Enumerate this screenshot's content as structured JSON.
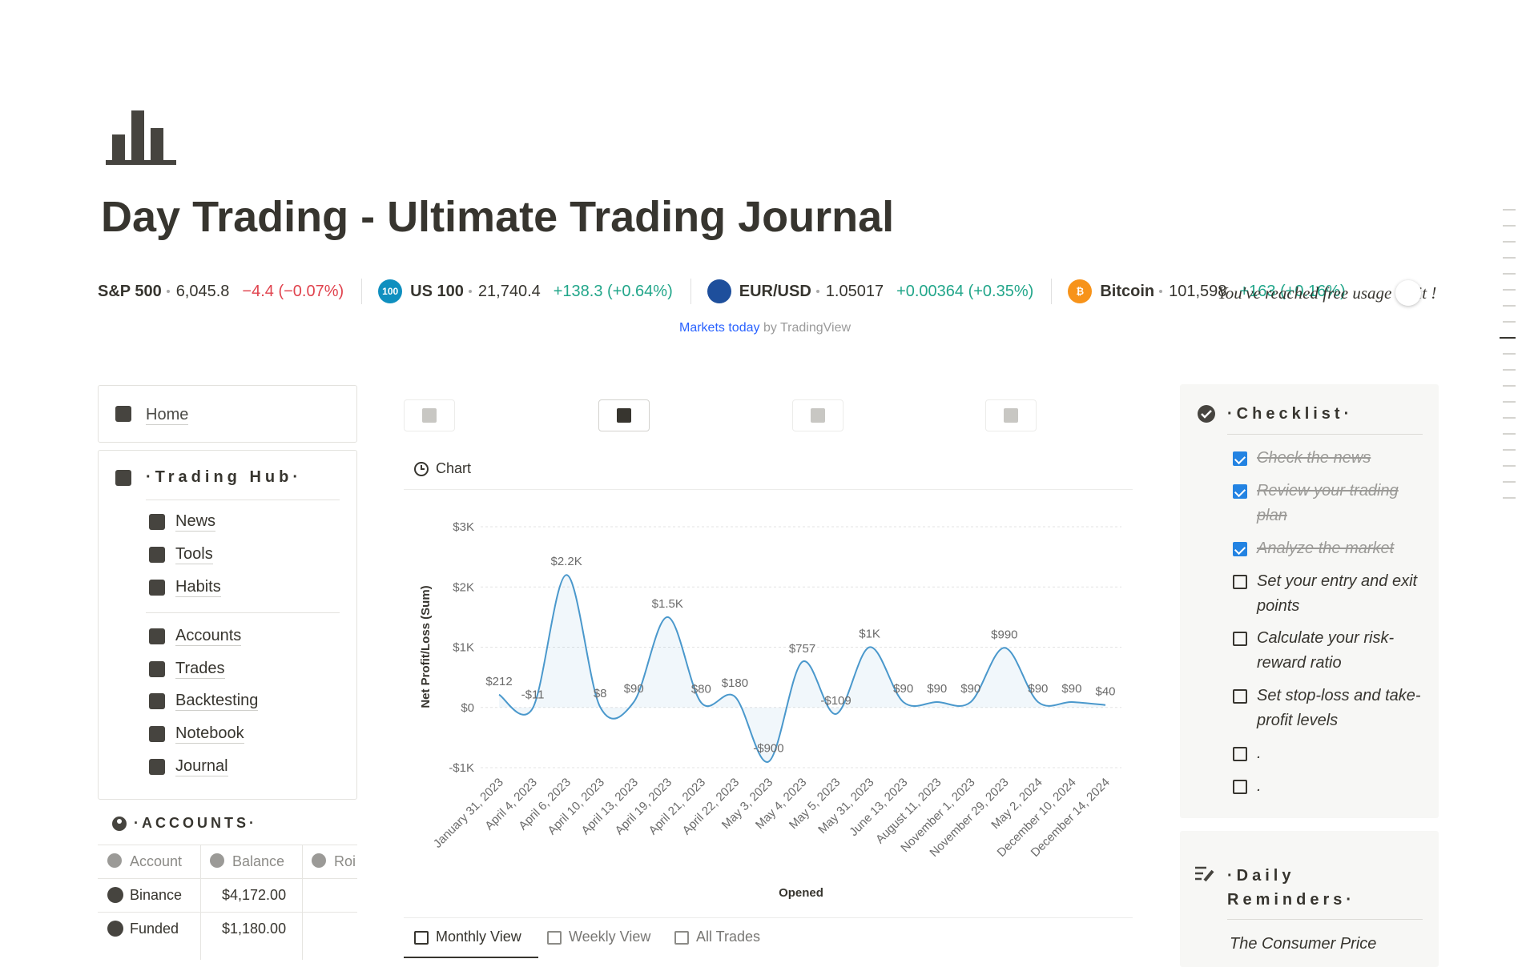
{
  "header": {
    "title": "Day Trading - Ultimate Trading Journal"
  },
  "ticker": {
    "items": [
      {
        "name": "S&P 500",
        "price": "6,045.8",
        "change": "−4.4 (−0.07%)",
        "trend": "down"
      },
      {
        "icon_label": "100",
        "name": "US 100",
        "price": "21,740.4",
        "change": "+138.3 (+0.64%)",
        "trend": "up"
      },
      {
        "name": "EUR/USD",
        "price": "1.05017",
        "change": "+0.00364 (+0.35%)",
        "trend": "up"
      },
      {
        "icon_label": "₿",
        "name": "Bitcoin",
        "price": "101,598",
        "change": "+163 (+0.16%)",
        "trend": "up"
      }
    ],
    "notice": "You've reached free usage limit !",
    "credit_link": "Markets today",
    "credit_rest": "by TradingView"
  },
  "sidebar": {
    "home": "Home",
    "hub_title": "·Trading Hub·",
    "group1": [
      "News",
      "Tools",
      "Habits"
    ],
    "group2": [
      "Accounts",
      "Trades",
      "Backtesting",
      "Notebook",
      "Journal"
    ]
  },
  "accounts": {
    "title": "·ACCOUNTS·",
    "columns": [
      "Account",
      "Balance",
      "Roi"
    ],
    "rows": [
      [
        "Binance",
        "$4,172.00"
      ],
      [
        "Funded",
        "$1,180.00"
      ]
    ]
  },
  "chart_panel": {
    "heading": "Chart",
    "tabs": [
      "Monthly View",
      "Weekly View",
      "All Trades"
    ]
  },
  "chart_data": {
    "type": "line",
    "y_label": "Net Profit/Loss (Sum)",
    "x_label": "Opened",
    "color": "#4a98cc",
    "grid": true,
    "categories": [
      "January 31, 2023",
      "April 4, 2023",
      "April 6, 2023",
      "April 10, 2023",
      "April 13, 2023",
      "April 19, 2023",
      "April 21, 2023",
      "April 22, 2023",
      "May 3, 2023",
      "May 4, 2023",
      "May 5, 2023",
      "May 31, 2023",
      "June 13, 2023",
      "August 11, 2023",
      "November 1, 2023",
      "November 29, 2023",
      "May 2, 2024",
      "December 10, 2024",
      "December 14, 2024"
    ],
    "values": [
      212,
      -11,
      2200,
      8,
      90,
      1500,
      80,
      180,
      -900,
      757,
      -109,
      1000,
      90,
      90,
      90,
      990,
      90,
      90,
      40
    ],
    "value_labels": [
      "$212",
      "-$11",
      "$2.2K",
      "$8",
      "$90",
      "$1.5K",
      "$80",
      "$180",
      "-$900",
      "$757",
      "-$109",
      "$1K",
      "$90",
      "$90",
      "$90",
      "$990",
      "$90",
      "$90",
      "$40"
    ],
    "ylim": [
      -1000,
      3000
    ],
    "yticks": [
      {
        "value": -1000,
        "label": "-$1K"
      },
      {
        "value": 0,
        "label": "$0"
      },
      {
        "value": 1000,
        "label": "$1K"
      },
      {
        "value": 2000,
        "label": "$2K"
      },
      {
        "value": 3000,
        "label": "$3K"
      }
    ]
  },
  "checklist": {
    "title": "·Checklist·",
    "items": [
      {
        "text": "Check the news",
        "checked": true
      },
      {
        "text": "Review your trading plan",
        "checked": true
      },
      {
        "text": "Analyze the market",
        "checked": true
      },
      {
        "text": "Set your entry and exit points",
        "checked": false
      },
      {
        "text": "Calculate your risk-reward ratio",
        "checked": false
      },
      {
        "text": "Set stop-loss and take-profit levels",
        "checked": false
      },
      {
        "text": ".",
        "checked": false
      },
      {
        "text": ".",
        "checked": false
      }
    ]
  },
  "reminders": {
    "title": "·Daily Reminders·",
    "text": "The Consumer Price"
  }
}
